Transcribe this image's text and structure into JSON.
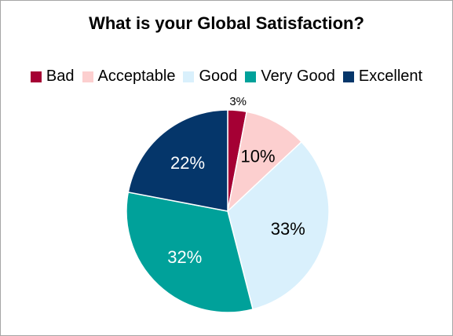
{
  "chart_data": {
    "type": "pie",
    "title": "What is your Global Satisfaction?",
    "categories": [
      "Bad",
      "Acceptable",
      "Good",
      "Very Good",
      "Excellent"
    ],
    "values": [
      3,
      10,
      33,
      32,
      22
    ],
    "labels": [
      "3%",
      "10%",
      "33%",
      "32%",
      "22%"
    ],
    "colors": [
      "#A50034",
      "#FCCFCF",
      "#D9F0FC",
      "#00A19A",
      "#05366A"
    ],
    "label_colors": [
      "#000000",
      "#000000",
      "#000000",
      "#FFFFFF",
      "#FFFFFF"
    ],
    "legend_position": "top"
  }
}
